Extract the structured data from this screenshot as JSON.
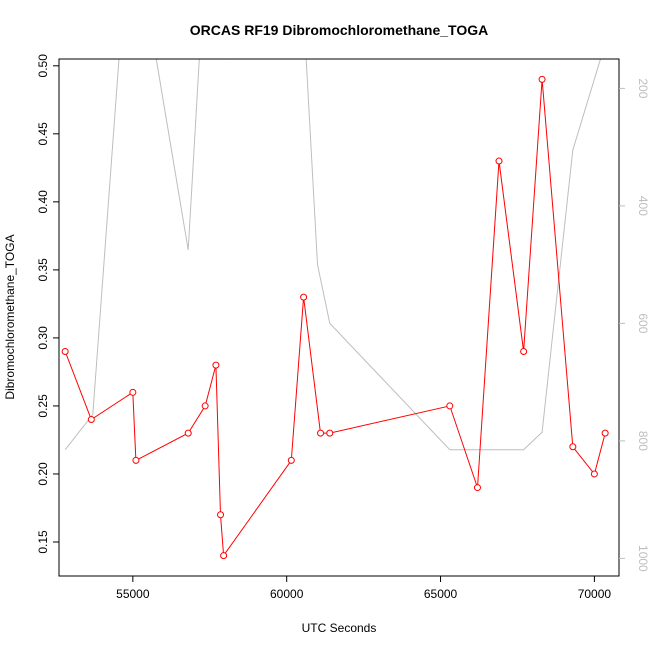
{
  "chart_data": {
    "type": "line",
    "title": "ORCAS RF19 Dibromochloromethane_TOGA",
    "xlabel": "UTC Seconds",
    "ylabel": "Dibromochloromethane_TOGA",
    "xlim": [
      52600,
      70800
    ],
    "ylim": [
      0.125,
      0.505
    ],
    "x_ticks": [
      55000,
      60000,
      65000,
      70000
    ],
    "y_ticks": [
      0.15,
      0.2,
      0.25,
      0.3,
      0.35,
      0.4,
      0.45,
      0.5
    ],
    "y2_ticks": [
      200,
      400,
      600,
      800,
      1000
    ],
    "y2lim": [
      1030,
      150
    ],
    "grid": false,
    "series": [
      {
        "color": "#ff0000",
        "marker": "circle-open",
        "x": [
          52800,
          53650,
          55000,
          55100,
          56800,
          57350,
          57700,
          57850,
          57950,
          60150,
          60550,
          61100,
          61400,
          65300,
          66200,
          66900,
          67700,
          68300,
          69300,
          70000,
          70350
        ],
        "y": [
          0.29,
          0.24,
          0.26,
          0.21,
          0.23,
          0.25,
          0.28,
          0.17,
          0.14,
          0.21,
          0.33,
          0.23,
          0.23,
          0.25,
          0.19,
          0.43,
          0.29,
          0.49,
          0.22,
          0.2,
          0.23
        ]
      },
      {
        "color": "#bebebe",
        "axis": "right",
        "x": [
          52800,
          53700,
          54600,
          55650,
          56800,
          57200,
          57700,
          58000,
          60600,
          61000,
          61400,
          65300,
          67700,
          68300,
          69300,
          70200
        ],
        "y": [
          815,
          755,
          115,
          115,
          475,
          115,
          115,
          150,
          120,
          500,
          600,
          815,
          815,
          785,
          305,
          150
        ]
      }
    ]
  }
}
